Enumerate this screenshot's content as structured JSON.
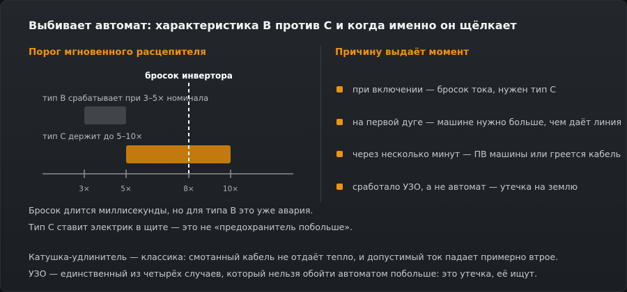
{
  "title": "Выбивает автомат: характеристика B против C и когда именно он щёлкает",
  "left_header": "Порог мгновенного расцепителя",
  "right_header": "Причину выдаёт момент",
  "diagram": {
    "marker_label": "бросок инвертора",
    "marker_value": 8,
    "bar_b_label": "тип B срабатывает при 3–5× номинала",
    "bar_b_range": [
      3,
      5
    ],
    "bar_c_label": "тип C держит до 5–10×",
    "bar_c_range": [
      5,
      10
    ],
    "ticks": [
      {
        "value": 3,
        "label": "3×"
      },
      {
        "value": 5,
        "label": "5×"
      },
      {
        "value": 8,
        "label": "8×"
      },
      {
        "value": 10,
        "label": "10×"
      }
    ],
    "colors": {
      "bar_b": "#414449",
      "bar_c": "#c27a0e",
      "accent": "#f0920f"
    }
  },
  "causes": [
    "при включении — бросок тока, нужен тип C",
    "на первой дуге — машине нужно больше, чем даёт линия",
    "через несколько минут — ПВ машины или греется кабель",
    "сработало УЗО, а не автомат — утечка на землю"
  ],
  "paragraph1": {
    "line1": "Бросок длится миллисекунды, но для типа B это уже авария.",
    "line2": "Тип C ставит электрик в щите — это не «предохранитель побольше»."
  },
  "paragraph2": {
    "line1": "Катушка-удлинитель — классика: смотанный кабель не отдаёт тепло, и допустимый ток падает примерно втрое.",
    "line2": "УЗО — единственный из четырёх случаев, который нельзя обойти автоматом побольше: это утечка, её ищут."
  }
}
